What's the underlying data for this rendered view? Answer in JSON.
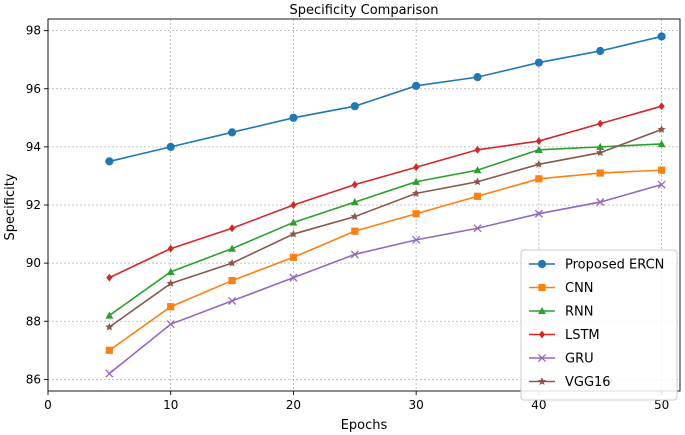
{
  "chart_data": {
    "type": "line",
    "title": "Specificity Comparison",
    "xlabel": "Epochs",
    "ylabel": "Specificity",
    "xlim": [
      0,
      51.5
    ],
    "ylim": [
      85.6,
      98.4
    ],
    "xticks": [
      0,
      10,
      20,
      30,
      40,
      50
    ],
    "yticks": [
      86,
      88,
      90,
      92,
      94,
      96,
      98
    ],
    "grid": true,
    "legend_position": "lower-right",
    "x": [
      5,
      10,
      15,
      20,
      25,
      30,
      35,
      40,
      45,
      50
    ],
    "series": [
      {
        "name": "Proposed ERCN",
        "color": "#1f77b4",
        "marker": "circle",
        "values": [
          93.5,
          94.0,
          94.5,
          95.0,
          95.4,
          96.1,
          96.4,
          96.9,
          97.3,
          97.8
        ]
      },
      {
        "name": "CNN",
        "color": "#ff7f0e",
        "marker": "square",
        "values": [
          87.0,
          88.5,
          89.4,
          90.2,
          91.1,
          91.7,
          92.3,
          92.9,
          93.1,
          93.2
        ]
      },
      {
        "name": "RNN",
        "color": "#2ca02c",
        "marker": "triangle",
        "values": [
          88.2,
          89.7,
          90.5,
          91.4,
          92.1,
          92.8,
          93.2,
          93.9,
          94.0,
          94.1
        ]
      },
      {
        "name": "LSTM",
        "color": "#d62728",
        "marker": "diamond",
        "values": [
          89.5,
          90.5,
          91.2,
          92.0,
          92.7,
          93.3,
          93.9,
          94.2,
          94.8,
          95.4
        ]
      },
      {
        "name": "GRU",
        "color": "#9467bd",
        "marker": "x",
        "values": [
          86.2,
          87.9,
          88.7,
          89.5,
          90.3,
          90.8,
          91.2,
          91.7,
          92.1,
          92.7
        ]
      },
      {
        "name": "VGG16",
        "color": "#8c564b",
        "marker": "star",
        "values": [
          87.8,
          89.3,
          90.0,
          91.0,
          91.6,
          92.4,
          92.8,
          93.4,
          93.8,
          94.6
        ]
      }
    ]
  }
}
